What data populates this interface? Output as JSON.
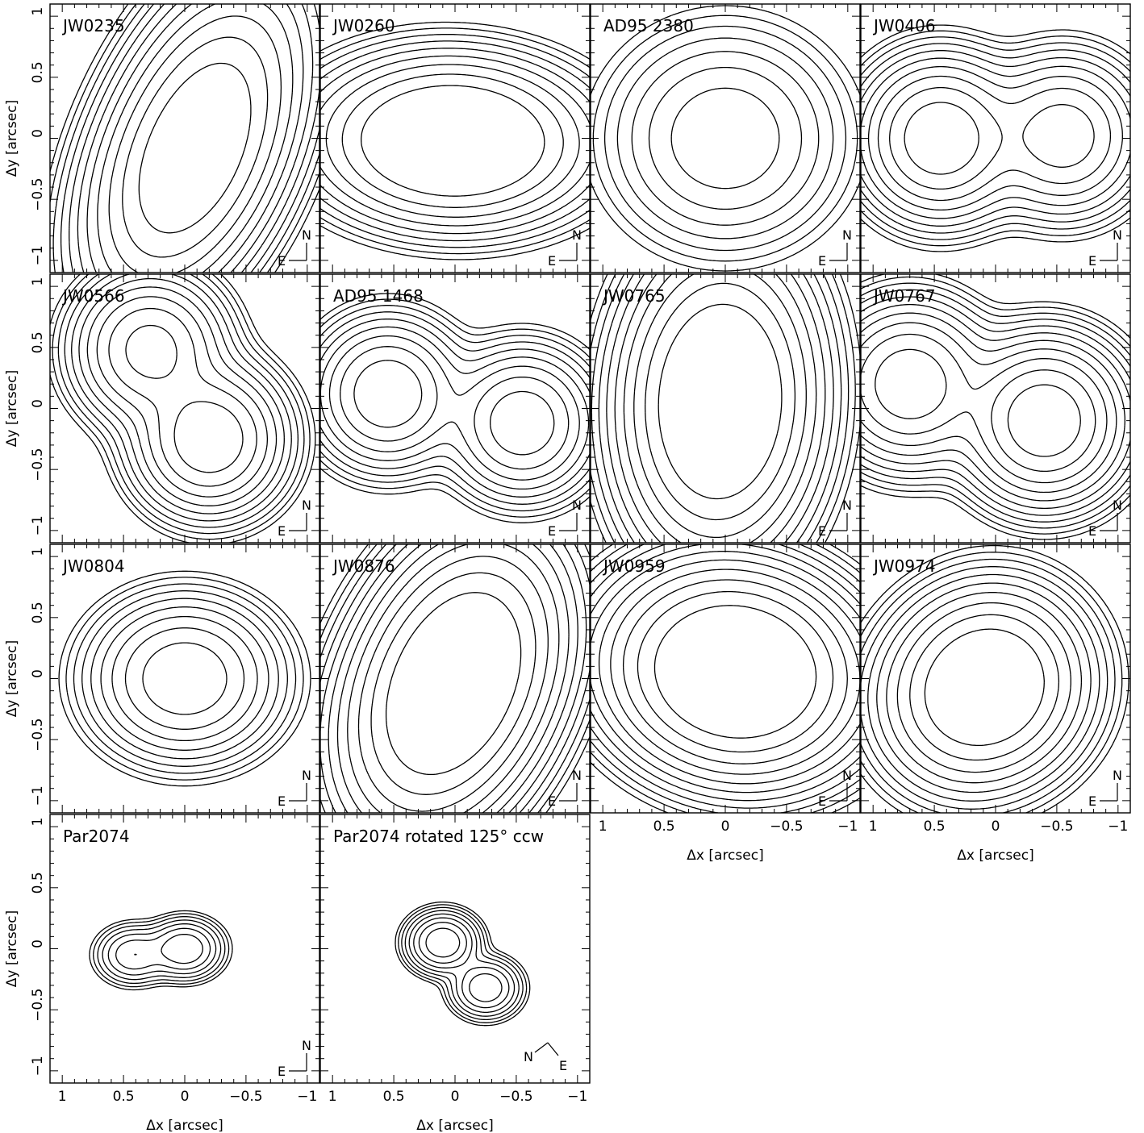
{
  "figure": {
    "axes": {
      "xlabel": "Δx [arcsec]",
      "ylabel": "Δy [arcsec]",
      "xlim": [
        1.1,
        -1.1
      ],
      "ylim": [
        -1.1,
        1.1
      ],
      "xticks": [
        {
          "v": 1,
          "l": "1"
        },
        {
          "v": 0.5,
          "l": "0.5"
        },
        {
          "v": 0,
          "l": "0"
        },
        {
          "v": -0.5,
          "l": "−0.5"
        },
        {
          "v": -1,
          "l": "−1"
        }
      ],
      "yticks": [
        {
          "v": 1,
          "l": "1"
        },
        {
          "v": 0.5,
          "l": "0.5"
        },
        {
          "v": 0,
          "l": "0"
        },
        {
          "v": -0.5,
          "l": "−0.5"
        },
        {
          "v": -1,
          "l": "−1"
        }
      ]
    },
    "compass_default": {
      "north": "N",
      "east": "E"
    }
  },
  "chart_data": [
    {
      "type": "contour",
      "title": "JW0235",
      "sources": [
        {
          "x": -0.2,
          "y": 0.3,
          "peak": 0.35
        },
        {
          "x": -0.05,
          "y": -0.2,
          "peak": 1.0
        }
      ],
      "elongation": {
        "sx": 0.32,
        "sy": 0.58,
        "angle": 25
      },
      "levels": 11,
      "outer_extent": [
        0.6,
        -0.8,
        0.95,
        -0.95
      ]
    },
    {
      "type": "contour",
      "title": "JW0260",
      "sources": [
        {
          "x": 0.15,
          "y": -0.1,
          "peak": 0.9
        },
        {
          "x": -0.1,
          "y": 0.05,
          "peak": 1.0
        }
      ],
      "elongation": {
        "sx": 0.5,
        "sy": 0.3,
        "angle": 5
      },
      "levels": 9,
      "outer_extent": [
        0.75,
        -0.7,
        0.8,
        -0.85
      ]
    },
    {
      "type": "contour",
      "title": "AD95 2380",
      "sources": [
        {
          "x": 0.0,
          "y": 0.0,
          "peak": 1.0
        }
      ],
      "elongation": {
        "sx": 0.45,
        "sy": 0.42,
        "angle": 0
      },
      "levels": 7,
      "outer_extent": [
        0.85,
        -0.75,
        0.7,
        -0.8
      ]
    },
    {
      "type": "contour",
      "title": "JW0406",
      "sources": [
        {
          "x": 0.45,
          "y": 0.0,
          "peak": 1.0
        },
        {
          "x": -0.55,
          "y": 0.02,
          "peak": 0.55
        }
      ],
      "elongation": {
        "sx": 0.3,
        "sy": 0.3,
        "angle": 0
      },
      "levels": 10,
      "outer_extent": [
        1.0,
        -0.95,
        0.6,
        -0.7
      ]
    },
    {
      "type": "contour",
      "title": "JW0566",
      "sources": [
        {
          "x": 0.28,
          "y": 0.48,
          "peak": 0.8
        },
        {
          "x": -0.2,
          "y": -0.25,
          "peak": 1.0
        }
      ],
      "elongation": {
        "sx": 0.28,
        "sy": 0.28,
        "angle": 0
      },
      "levels": 10,
      "outer_extent": [
        0.7,
        -0.8,
        0.85,
        -0.9
      ]
    },
    {
      "type": "contour",
      "title": "AD95 1468",
      "sources": [
        {
          "x": 0.55,
          "y": 0.12,
          "peak": 1.0
        },
        {
          "x": -0.55,
          "y": -0.12,
          "peak": 0.95
        }
      ],
      "elongation": {
        "sx": 0.28,
        "sy": 0.28,
        "angle": 0
      },
      "levels": 9,
      "outer_extent": [
        1.05,
        -1.0,
        0.6,
        -0.7
      ]
    },
    {
      "type": "contour",
      "title": "JW0765",
      "sources": [
        {
          "x": 0.1,
          "y": 0.2,
          "peak": 0.75
        },
        {
          "x": 0.0,
          "y": -0.05,
          "peak": 1.0
        }
      ],
      "elongation": {
        "sx": 0.35,
        "sy": 0.55,
        "angle": 5
      },
      "levels": 10,
      "outer_extent": [
        0.8,
        -0.65,
        0.8,
        -0.8
      ]
    },
    {
      "type": "contour",
      "title": "JW0767",
      "sources": [
        {
          "x": 0.7,
          "y": 0.2,
          "peak": 0.6
        },
        {
          "x": -0.4,
          "y": -0.1,
          "peak": 1.0
        }
      ],
      "elongation": {
        "sx": 0.3,
        "sy": 0.3,
        "angle": 0
      },
      "levels": 11,
      "outer_extent": [
        0.85,
        -1.0,
        0.45,
        -0.7
      ]
    },
    {
      "type": "contour",
      "title": "JW0804",
      "sources": [
        {
          "x": 0.0,
          "y": 0.0,
          "peak": 1.0
        }
      ],
      "elongation": {
        "sx": 0.35,
        "sy": 0.3,
        "angle": 0
      },
      "levels": 9,
      "outer_extent": [
        0.6,
        -0.5,
        0.5,
        -0.5
      ]
    },
    {
      "type": "contour",
      "title": "JW0876",
      "sources": [
        {
          "x": -0.1,
          "y": 0.15,
          "peak": 0.95
        },
        {
          "x": 0.15,
          "y": -0.27,
          "peak": 0.8
        }
      ],
      "elongation": {
        "sx": 0.35,
        "sy": 0.5,
        "angle": 20
      },
      "levels": 11,
      "outer_extent": [
        0.7,
        -0.7,
        0.85,
        -0.85
      ]
    },
    {
      "type": "contour",
      "title": "JW0959",
      "sources": [
        {
          "x": 0.05,
          "y": -0.05,
          "peak": 0.9
        },
        {
          "x": -0.2,
          "y": 0.15,
          "peak": 1.0
        }
      ],
      "elongation": {
        "sx": 0.45,
        "sy": 0.35,
        "angle": 20
      },
      "levels": 11,
      "outer_extent": [
        0.75,
        -0.85,
        0.75,
        -0.75
      ]
    },
    {
      "type": "contour",
      "title": "JW0974",
      "sources": [
        {
          "x": 0.0,
          "y": 0.0,
          "peak": 1.0
        },
        {
          "x": 0.25,
          "y": -0.2,
          "peak": 0.6
        }
      ],
      "elongation": {
        "sx": 0.35,
        "sy": 0.35,
        "angle": 25
      },
      "levels": 10,
      "outer_extent": [
        0.7,
        -0.6,
        0.6,
        -0.65
      ]
    },
    {
      "type": "contour",
      "title": "Par2074",
      "sources": [
        {
          "x": 0.0,
          "y": 0.0,
          "peak": 1.0
        },
        {
          "x": 0.42,
          "y": -0.05,
          "peak": 0.6
        }
      ],
      "elongation": {
        "sx": 0.15,
        "sy": 0.12,
        "angle": 0
      },
      "levels": 7,
      "outer_extent": [
        0.45,
        -0.45,
        0.45,
        -0.4
      ]
    },
    {
      "type": "contour",
      "title": "Par2074 rotated 125° ccw",
      "sources": [
        {
          "x": 0.1,
          "y": 0.05,
          "peak": 1.0
        },
        {
          "x": -0.25,
          "y": -0.32,
          "peak": 0.6
        }
      ],
      "elongation": {
        "sx": 0.14,
        "sy": 0.12,
        "angle": 0
      },
      "levels": 8,
      "outer_extent": [
        0.45,
        -0.45,
        0.45,
        -0.45
      ],
      "compass": {
        "north": "N",
        "east": "E",
        "rotated": true
      }
    }
  ]
}
